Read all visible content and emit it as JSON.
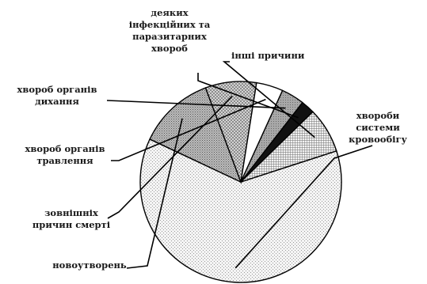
{
  "chart_data": {
    "type": "pie",
    "title": "",
    "legend": "none",
    "slices": [
      {
        "label_lines": [
          "хвороби",
          "системи",
          "кровообігу"
        ],
        "value": 62.0,
        "pattern": "light-dots"
      },
      {
        "label_lines": [
          "новоутворень"
        ],
        "value": 12.3,
        "pattern": "dense-dots"
      },
      {
        "label_lines": [
          "зовнішніх",
          "причин смерті"
        ],
        "value": 8.2,
        "pattern": "crosshatch"
      },
      {
        "label_lines": [
          "хвороб органів",
          "травлення"
        ],
        "value": 4.3,
        "pattern": "white"
      },
      {
        "label_lines": [
          "хвороб органів",
          "дихання"
        ],
        "value": 3.7,
        "pattern": "medium-gray"
      },
      {
        "label_lines": [
          "деяких",
          "інфекційних та",
          "паразитарних",
          "хвороб"
        ],
        "value": 2.2,
        "pattern": "black"
      },
      {
        "label_lines": [
          "інші причини"
        ],
        "value": 7.3,
        "pattern": "grid"
      }
    ],
    "colors": {
      "stroke": "#000000",
      "text": "#1a1a1a",
      "background": "#ffffff"
    }
  }
}
